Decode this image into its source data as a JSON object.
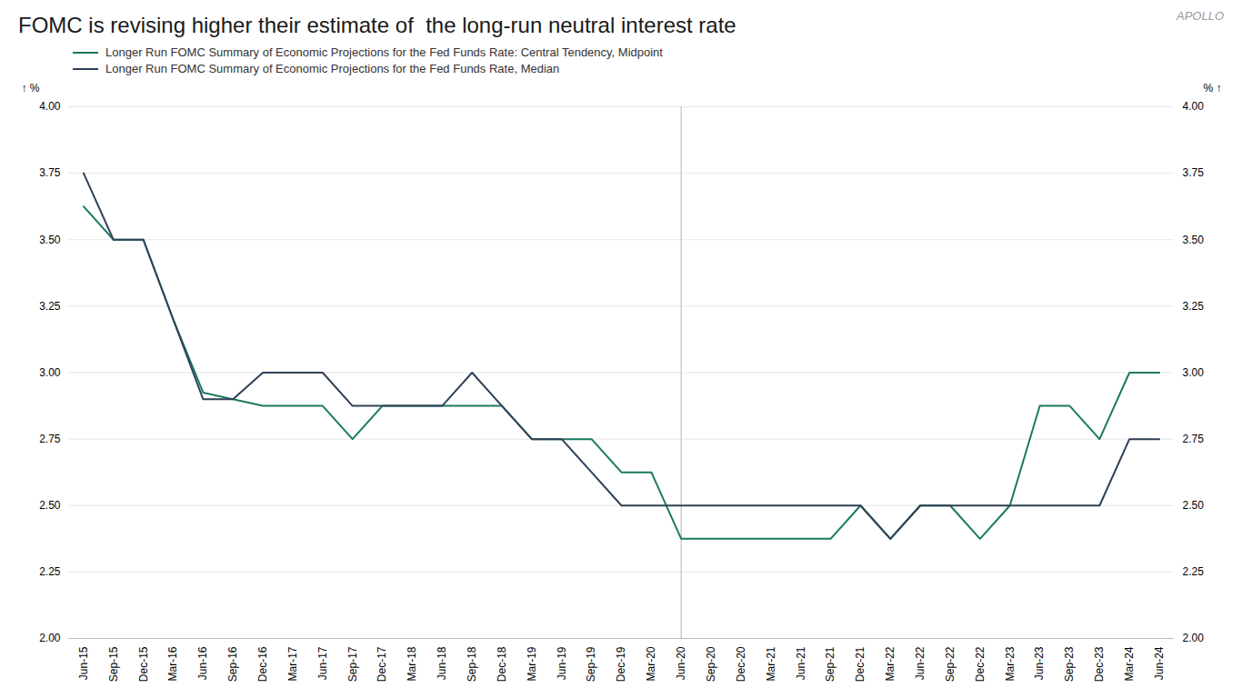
{
  "chart_data": {
    "type": "line",
    "title": "FOMC is revising higher their estimate of  the long-run neutral interest rate",
    "annotations": [
      {
        "text": "APOLLO"
      }
    ],
    "vline": "Jun-20",
    "ylabel": "%",
    "y2label": "%",
    "categories": [
      "Jun-15",
      "Sep-15",
      "Dec-15",
      "Mar-16",
      "Jun-16",
      "Sep-16",
      "Dec-16",
      "Mar-17",
      "Jun-17",
      "Sep-17",
      "Dec-17",
      "Mar-18",
      "Jun-18",
      "Sep-18",
      "Dec-18",
      "Mar-19",
      "Jun-19",
      "Sep-19",
      "Dec-19",
      "Mar-20",
      "Jun-20",
      "Sep-20",
      "Dec-20",
      "Mar-21",
      "Jun-21",
      "Sep-21",
      "Dec-21",
      "Mar-22",
      "Jun-22",
      "Sep-22",
      "Dec-22",
      "Mar-23",
      "Jun-23",
      "Sep-23",
      "Dec-23",
      "Mar-24",
      "Jun-24"
    ],
    "series": [
      {
        "name": "Longer Run FOMC Summary of Economic Projections for the Fed Funds Rate: Central Tendency, Midpoint",
        "color": "#1a7a5e",
        "values": [
          3.625,
          3.5,
          3.5,
          3.2,
          2.925,
          2.9,
          2.875,
          2.875,
          2.875,
          2.75,
          2.875,
          2.875,
          2.875,
          2.875,
          2.875,
          2.75,
          2.75,
          2.75,
          2.625,
          2.625,
          2.375,
          2.375,
          2.375,
          2.375,
          2.375,
          2.375,
          2.5,
          2.375,
          2.5,
          2.5,
          2.375,
          2.5,
          2.875,
          2.875,
          2.75,
          3.0,
          3.0
        ]
      },
      {
        "name": "Longer Run FOMC Summary of Economic Projections for the Fed Funds Rate, Median",
        "color": "#2e4057",
        "values": [
          3.75,
          3.5,
          3.5,
          3.2,
          2.9,
          2.9,
          3.0,
          3.0,
          3.0,
          2.875,
          2.875,
          2.875,
          2.875,
          3.0,
          2.875,
          2.75,
          2.75,
          2.625,
          2.5,
          2.5,
          2.5,
          2.5,
          2.5,
          2.5,
          2.5,
          2.5,
          2.5,
          2.375,
          2.5,
          2.5,
          2.5,
          2.5,
          2.5,
          2.5,
          2.5,
          2.75,
          2.75
        ]
      }
    ],
    "ylim": [
      2.0,
      4.0
    ],
    "yticks": [
      {
        "value": 2.0,
        "label": "2.00"
      },
      {
        "value": 2.25,
        "label": "2.25"
      },
      {
        "value": 2.5,
        "label": "2.50"
      },
      {
        "value": 2.75,
        "label": "2.75"
      },
      {
        "value": 3.0,
        "label": "3.00"
      },
      {
        "value": 3.25,
        "label": "3.25"
      },
      {
        "value": 3.5,
        "label": "3.50"
      },
      {
        "value": 3.75,
        "label": "3.75"
      },
      {
        "value": 4.0,
        "label": "4.00"
      }
    ],
    "y2lim": [
      2.0,
      4.0
    ],
    "y2ticks": [
      {
        "value": 2.0,
        "label": "2.00"
      },
      {
        "value": 2.25,
        "label": "2.25"
      },
      {
        "value": 2.5,
        "label": "2.50"
      },
      {
        "value": 2.75,
        "label": "2.75"
      },
      {
        "value": 3.0,
        "label": "3.00"
      },
      {
        "value": 3.25,
        "label": "3.25"
      },
      {
        "value": 3.5,
        "label": "3.50"
      },
      {
        "value": 3.75,
        "label": "3.75"
      },
      {
        "value": 4.0,
        "label": "4.00"
      }
    ],
    "grid": true
  }
}
